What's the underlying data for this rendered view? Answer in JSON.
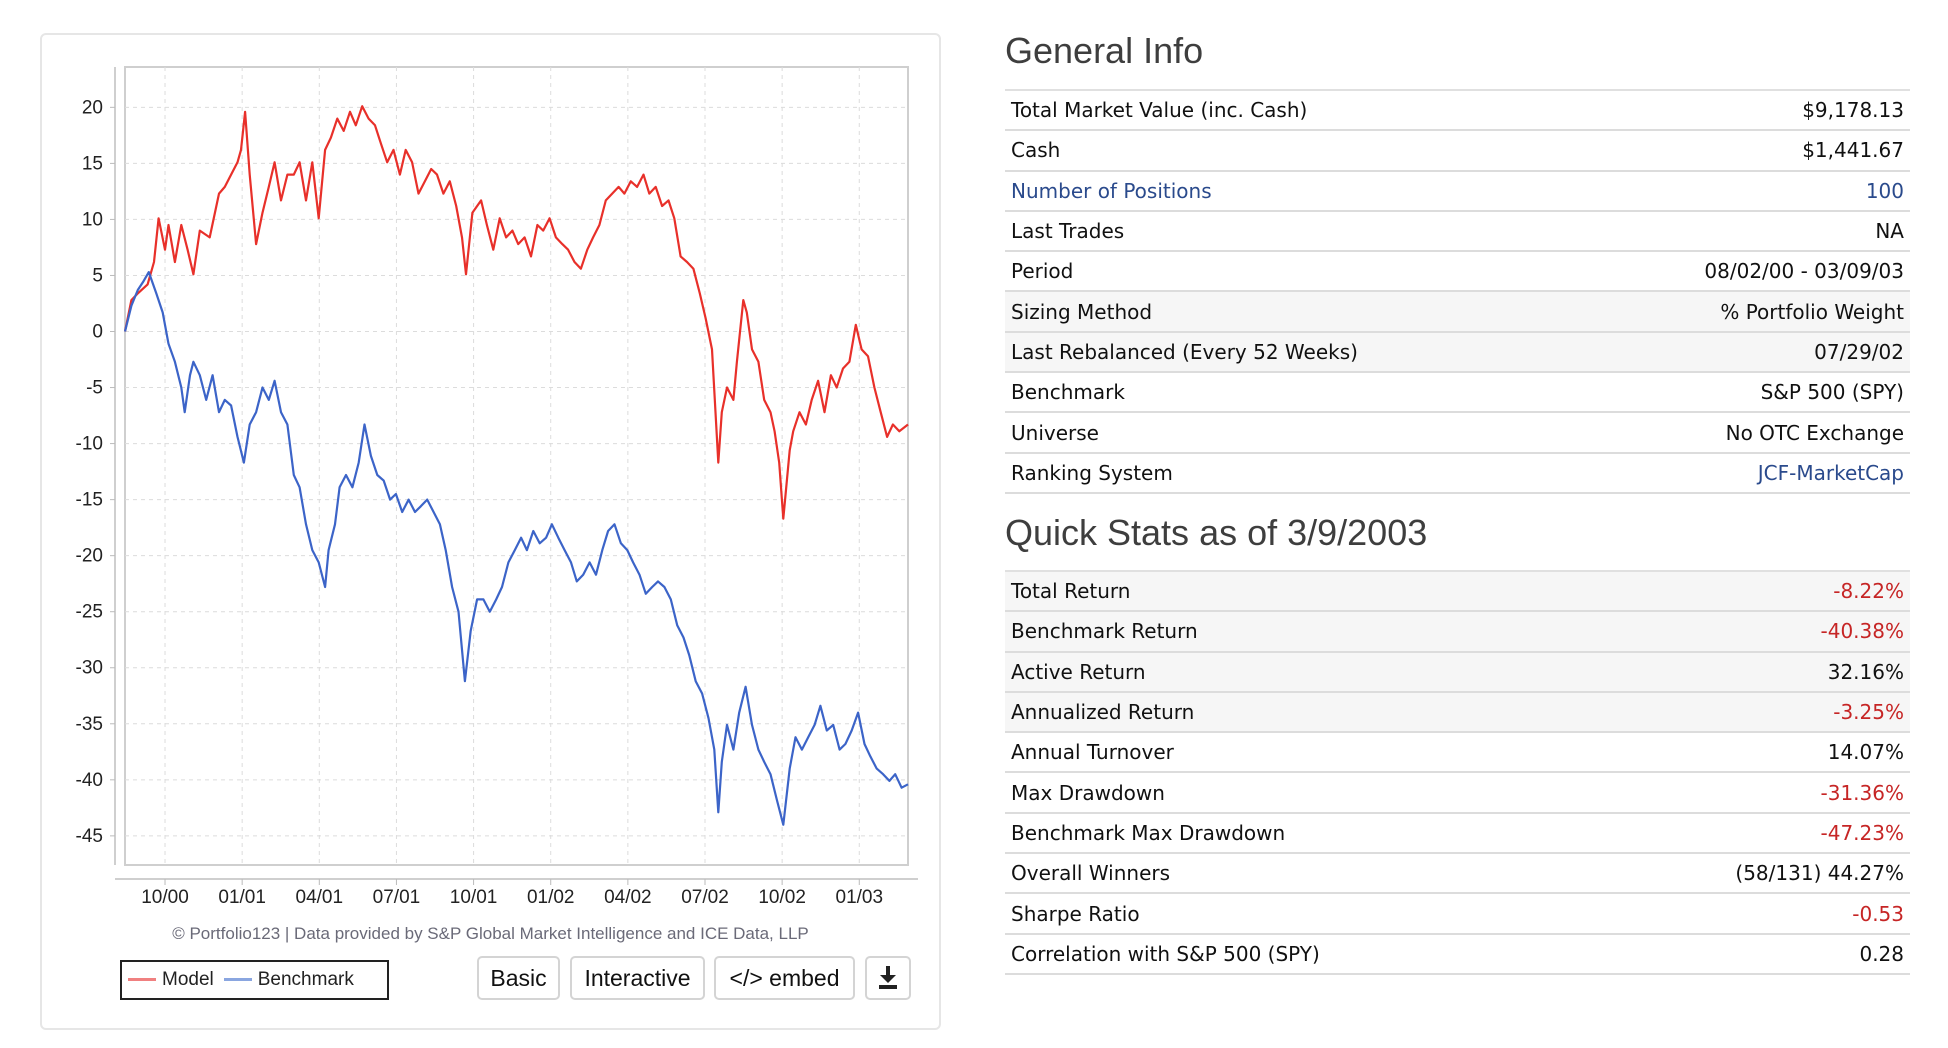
{
  "chart_panel": {
    "credit": "© Portfolio123 | Data provided by S&P Global Market Intelligence and ICE Data, LLP",
    "legend": [
      {
        "label": "Model",
        "color": "#e8302a"
      },
      {
        "label": "Benchmark",
        "color": "#3c64c8"
      }
    ],
    "buttons": {
      "basic": "Basic",
      "interactive": "Interactive",
      "embed": "</> embed",
      "download_icon": "download-icon"
    }
  },
  "chart_data": {
    "type": "line",
    "title": "",
    "xlabel": "",
    "ylabel": "",
    "x_unit": "weeks since 08/02/00",
    "xlim": [
      0,
      135
    ],
    "ylim": [
      -47.6,
      23.6
    ],
    "y_ticks": [
      20,
      15,
      10,
      5,
      0,
      -5,
      -10,
      -15,
      -20,
      -25,
      -30,
      -35,
      -40,
      -45
    ],
    "x_ticks": [
      {
        "label": "10/00",
        "x": 6.9
      },
      {
        "label": "01/01",
        "x": 20.2
      },
      {
        "label": "04/01",
        "x": 33.5
      },
      {
        "label": "07/01",
        "x": 46.8
      },
      {
        "label": "10/01",
        "x": 60.1
      },
      {
        "label": "01/02",
        "x": 73.4
      },
      {
        "label": "04/02",
        "x": 86.7
      },
      {
        "label": "07/02",
        "x": 100.0
      },
      {
        "label": "10/02",
        "x": 113.3
      },
      {
        "label": "01/03",
        "x": 126.6
      }
    ],
    "grid": true,
    "legend_position": "bottom-left",
    "series": [
      {
        "name": "Model",
        "color": "#e8302a",
        "points": [
          [
            0,
            0.0
          ],
          [
            1.1,
            2.8
          ],
          [
            2.2,
            3.4
          ],
          [
            3.9,
            4.2
          ],
          [
            5.0,
            6.2
          ],
          [
            5.8,
            10.1
          ],
          [
            6.9,
            7.3
          ],
          [
            7.5,
            9.5
          ],
          [
            8.6,
            6.2
          ],
          [
            9.7,
            9.5
          ],
          [
            10.8,
            7.3
          ],
          [
            11.8,
            5.1
          ],
          [
            12.9,
            9.0
          ],
          [
            14.6,
            8.4
          ],
          [
            16.2,
            12.3
          ],
          [
            17.2,
            12.9
          ],
          [
            18.3,
            14.0
          ],
          [
            19.4,
            15.1
          ],
          [
            20.0,
            16.2
          ],
          [
            20.7,
            19.6
          ],
          [
            21.5,
            14.0
          ],
          [
            22.6,
            7.8
          ],
          [
            23.7,
            10.6
          ],
          [
            24.8,
            12.9
          ],
          [
            25.8,
            15.1
          ],
          [
            26.9,
            11.7
          ],
          [
            28.0,
            14.0
          ],
          [
            29.1,
            14.0
          ],
          [
            30.1,
            15.1
          ],
          [
            31.2,
            11.7
          ],
          [
            32.3,
            15.1
          ],
          [
            33.4,
            10.1
          ],
          [
            34.5,
            16.2
          ],
          [
            35.5,
            17.3
          ],
          [
            36.6,
            19.0
          ],
          [
            37.7,
            17.9
          ],
          [
            38.8,
            19.6
          ],
          [
            39.8,
            18.4
          ],
          [
            40.9,
            20.1
          ],
          [
            42.0,
            19.0
          ],
          [
            43.1,
            18.4
          ],
          [
            44.1,
            16.8
          ],
          [
            45.2,
            15.1
          ],
          [
            46.3,
            16.2
          ],
          [
            47.4,
            14.0
          ],
          [
            48.4,
            16.2
          ],
          [
            49.5,
            15.1
          ],
          [
            50.6,
            12.3
          ],
          [
            51.7,
            13.4
          ],
          [
            52.8,
            14.5
          ],
          [
            53.8,
            14.0
          ],
          [
            54.9,
            12.3
          ],
          [
            56.0,
            13.4
          ],
          [
            57.1,
            11.2
          ],
          [
            58.1,
            8.4
          ],
          [
            58.8,
            5.1
          ],
          [
            59.9,
            10.6
          ],
          [
            61.4,
            11.7
          ],
          [
            62.4,
            9.5
          ],
          [
            63.5,
            7.3
          ],
          [
            64.6,
            10.1
          ],
          [
            65.7,
            8.4
          ],
          [
            66.8,
            9.0
          ],
          [
            67.8,
            7.8
          ],
          [
            68.9,
            8.4
          ],
          [
            70.0,
            6.7
          ],
          [
            71.1,
            9.5
          ],
          [
            72.1,
            9.0
          ],
          [
            73.2,
            10.1
          ],
          [
            74.3,
            8.4
          ],
          [
            75.4,
            7.8
          ],
          [
            76.4,
            7.3
          ],
          [
            77.5,
            6.2
          ],
          [
            78.6,
            5.6
          ],
          [
            79.7,
            7.3
          ],
          [
            80.7,
            8.4
          ],
          [
            81.8,
            9.5
          ],
          [
            82.9,
            11.7
          ],
          [
            84.0,
            12.3
          ],
          [
            85.1,
            12.9
          ],
          [
            86.1,
            12.3
          ],
          [
            87.2,
            13.4
          ],
          [
            88.3,
            12.9
          ],
          [
            89.4,
            14.0
          ],
          [
            90.4,
            12.3
          ],
          [
            91.5,
            12.9
          ],
          [
            92.6,
            11.2
          ],
          [
            93.7,
            11.7
          ],
          [
            94.7,
            10.1
          ],
          [
            95.8,
            6.7
          ],
          [
            96.9,
            6.2
          ],
          [
            98.0,
            5.6
          ],
          [
            99.1,
            3.4
          ],
          [
            100.1,
            1.2
          ],
          [
            101.2,
            -1.6
          ],
          [
            102.3,
            -11.7
          ],
          [
            102.9,
            -7.2
          ],
          [
            103.8,
            -5.0
          ],
          [
            104.9,
            -6.1
          ],
          [
            105.5,
            -2.7
          ],
          [
            106.6,
            2.8
          ],
          [
            107.2,
            1.7
          ],
          [
            108.1,
            -1.6
          ],
          [
            109.2,
            -2.7
          ],
          [
            110.2,
            -6.1
          ],
          [
            111.3,
            -7.2
          ],
          [
            112.0,
            -8.9
          ],
          [
            112.8,
            -11.7
          ],
          [
            113.5,
            -16.7
          ],
          [
            114.6,
            -10.6
          ],
          [
            115.2,
            -8.9
          ],
          [
            116.3,
            -7.2
          ],
          [
            117.4,
            -8.3
          ],
          [
            118.4,
            -6.1
          ],
          [
            119.5,
            -4.4
          ],
          [
            120.6,
            -7.2
          ],
          [
            121.7,
            -3.9
          ],
          [
            122.7,
            -5.0
          ],
          [
            123.8,
            -3.3
          ],
          [
            124.9,
            -2.7
          ],
          [
            126.0,
            0.6
          ],
          [
            127.0,
            -1.6
          ],
          [
            128.1,
            -2.2
          ],
          [
            129.2,
            -5.0
          ],
          [
            130.3,
            -7.2
          ],
          [
            131.4,
            -9.4
          ],
          [
            132.4,
            -8.3
          ],
          [
            133.5,
            -8.9
          ],
          [
            135.0,
            -8.3
          ]
        ]
      },
      {
        "name": "Benchmark",
        "color": "#3c64c8",
        "points": [
          [
            0,
            0.0
          ],
          [
            1.1,
            2.3
          ],
          [
            2.2,
            3.7
          ],
          [
            3.2,
            4.5
          ],
          [
            4.1,
            5.3
          ],
          [
            5.4,
            3.4
          ],
          [
            6.5,
            1.7
          ],
          [
            7.5,
            -1.1
          ],
          [
            8.6,
            -2.7
          ],
          [
            9.7,
            -5.0
          ],
          [
            10.3,
            -7.2
          ],
          [
            11.2,
            -3.9
          ],
          [
            11.8,
            -2.7
          ],
          [
            12.9,
            -3.9
          ],
          [
            14.0,
            -6.1
          ],
          [
            15.1,
            -3.9
          ],
          [
            16.2,
            -7.2
          ],
          [
            17.2,
            -6.1
          ],
          [
            18.3,
            -6.6
          ],
          [
            19.4,
            -9.4
          ],
          [
            20.5,
            -11.7
          ],
          [
            21.5,
            -8.3
          ],
          [
            22.6,
            -7.2
          ],
          [
            23.7,
            -5.0
          ],
          [
            24.8,
            -6.1
          ],
          [
            25.8,
            -4.4
          ],
          [
            26.9,
            -7.2
          ],
          [
            28.0,
            -8.3
          ],
          [
            29.1,
            -12.8
          ],
          [
            30.1,
            -13.9
          ],
          [
            31.2,
            -17.2
          ],
          [
            32.3,
            -19.5
          ],
          [
            33.4,
            -20.6
          ],
          [
            34.5,
            -22.8
          ],
          [
            35.1,
            -19.5
          ],
          [
            36.2,
            -17.2
          ],
          [
            37.0,
            -13.9
          ],
          [
            38.1,
            -12.8
          ],
          [
            39.2,
            -13.9
          ],
          [
            40.3,
            -11.7
          ],
          [
            41.3,
            -8.3
          ],
          [
            42.4,
            -11.1
          ],
          [
            43.5,
            -12.8
          ],
          [
            44.6,
            -13.3
          ],
          [
            45.7,
            -15.0
          ],
          [
            46.7,
            -14.5
          ],
          [
            47.8,
            -16.1
          ],
          [
            48.9,
            -15.0
          ],
          [
            50.0,
            -16.1
          ],
          [
            51.0,
            -15.6
          ],
          [
            52.1,
            -15.0
          ],
          [
            53.2,
            -16.1
          ],
          [
            54.3,
            -17.2
          ],
          [
            55.3,
            -19.5
          ],
          [
            56.4,
            -22.8
          ],
          [
            57.5,
            -25.0
          ],
          [
            58.6,
            -31.2
          ],
          [
            59.6,
            -26.7
          ],
          [
            60.7,
            -23.9
          ],
          [
            61.8,
            -23.9
          ],
          [
            62.9,
            -25.0
          ],
          [
            64.0,
            -23.9
          ],
          [
            65.0,
            -22.8
          ],
          [
            66.1,
            -20.6
          ],
          [
            67.2,
            -19.5
          ],
          [
            68.3,
            -18.4
          ],
          [
            69.3,
            -19.5
          ],
          [
            70.4,
            -17.8
          ],
          [
            71.5,
            -18.9
          ],
          [
            72.6,
            -18.4
          ],
          [
            73.6,
            -17.2
          ],
          [
            74.7,
            -18.4
          ],
          [
            75.8,
            -19.5
          ],
          [
            76.9,
            -20.6
          ],
          [
            77.9,
            -22.3
          ],
          [
            79.0,
            -21.7
          ],
          [
            80.1,
            -20.6
          ],
          [
            81.2,
            -21.7
          ],
          [
            82.3,
            -19.5
          ],
          [
            83.3,
            -17.8
          ],
          [
            84.4,
            -17.2
          ],
          [
            85.5,
            -18.9
          ],
          [
            86.6,
            -19.5
          ],
          [
            87.6,
            -20.6
          ],
          [
            88.7,
            -21.7
          ],
          [
            89.8,
            -23.4
          ],
          [
            90.9,
            -22.8
          ],
          [
            91.9,
            -22.3
          ],
          [
            93.0,
            -22.8
          ],
          [
            94.1,
            -23.9
          ],
          [
            95.2,
            -26.2
          ],
          [
            96.3,
            -27.3
          ],
          [
            97.3,
            -28.9
          ],
          [
            98.4,
            -31.2
          ],
          [
            99.5,
            -32.3
          ],
          [
            100.6,
            -34.5
          ],
          [
            101.6,
            -37.3
          ],
          [
            102.3,
            -42.9
          ],
          [
            102.9,
            -38.4
          ],
          [
            103.8,
            -35.1
          ],
          [
            104.9,
            -37.3
          ],
          [
            105.9,
            -34.0
          ],
          [
            107.0,
            -31.7
          ],
          [
            108.1,
            -35.1
          ],
          [
            109.2,
            -37.3
          ],
          [
            110.2,
            -38.4
          ],
          [
            111.3,
            -39.5
          ],
          [
            112.4,
            -41.8
          ],
          [
            113.5,
            -44.0
          ],
          [
            114.6,
            -39.0
          ],
          [
            115.6,
            -36.2
          ],
          [
            116.7,
            -37.3
          ],
          [
            117.8,
            -36.2
          ],
          [
            118.9,
            -35.1
          ],
          [
            119.9,
            -33.4
          ],
          [
            121.0,
            -35.6
          ],
          [
            122.1,
            -35.1
          ],
          [
            123.2,
            -37.3
          ],
          [
            124.2,
            -36.8
          ],
          [
            125.3,
            -35.6
          ],
          [
            126.4,
            -34.0
          ],
          [
            127.5,
            -36.8
          ],
          [
            128.5,
            -37.9
          ],
          [
            129.6,
            -39.0
          ],
          [
            130.7,
            -39.5
          ],
          [
            131.8,
            -40.1
          ],
          [
            132.8,
            -39.5
          ],
          [
            133.9,
            -40.7
          ],
          [
            135.0,
            -40.4
          ]
        ]
      }
    ]
  },
  "general_info": {
    "title": "General Info",
    "rows": [
      {
        "label": "Total Market Value (inc. Cash)",
        "value": "$9,178.13"
      },
      {
        "label": "Cash",
        "value": "$1,441.67"
      },
      {
        "label": "Number of Positions",
        "value": "100"
      },
      {
        "label": "Last Trades",
        "value": "NA"
      },
      {
        "label": "Period",
        "value": "08/02/00 - 03/09/03"
      },
      {
        "label": "Sizing Method",
        "value": "% Portfolio Weight"
      },
      {
        "label": "Last Rebalanced (Every 52 Weeks)",
        "value": "07/29/02"
      },
      {
        "label": "Benchmark",
        "value": "S&P 500 (SPY)"
      },
      {
        "label": "Universe",
        "value": "No OTC Exchange"
      },
      {
        "label": "Ranking System",
        "value": "JCF-MarketCap"
      }
    ]
  },
  "quick_stats": {
    "title": "Quick Stats as of 3/9/2003",
    "rows": [
      {
        "label": "Total Return",
        "value": "-8.22%"
      },
      {
        "label": "Benchmark Return",
        "value": "-40.38%"
      },
      {
        "label": "Active Return",
        "value": "32.16%"
      },
      {
        "label": "Annualized Return",
        "value": "-3.25%"
      },
      {
        "label": "Annual Turnover",
        "value": "14.07%"
      },
      {
        "label": "Max Drawdown",
        "value": "-31.36%"
      },
      {
        "label": "Benchmark Max Drawdown",
        "value": "-47.23%"
      },
      {
        "label": "Overall Winners",
        "value": "(58/131) 44.27%"
      },
      {
        "label": "Sharpe Ratio",
        "value": "-0.53"
      },
      {
        "label": "Correlation with S&P 500 (SPY)",
        "value": "0.28"
      }
    ]
  },
  "colors": {
    "negative": "#c62525",
    "link": "#2a4a8c"
  }
}
